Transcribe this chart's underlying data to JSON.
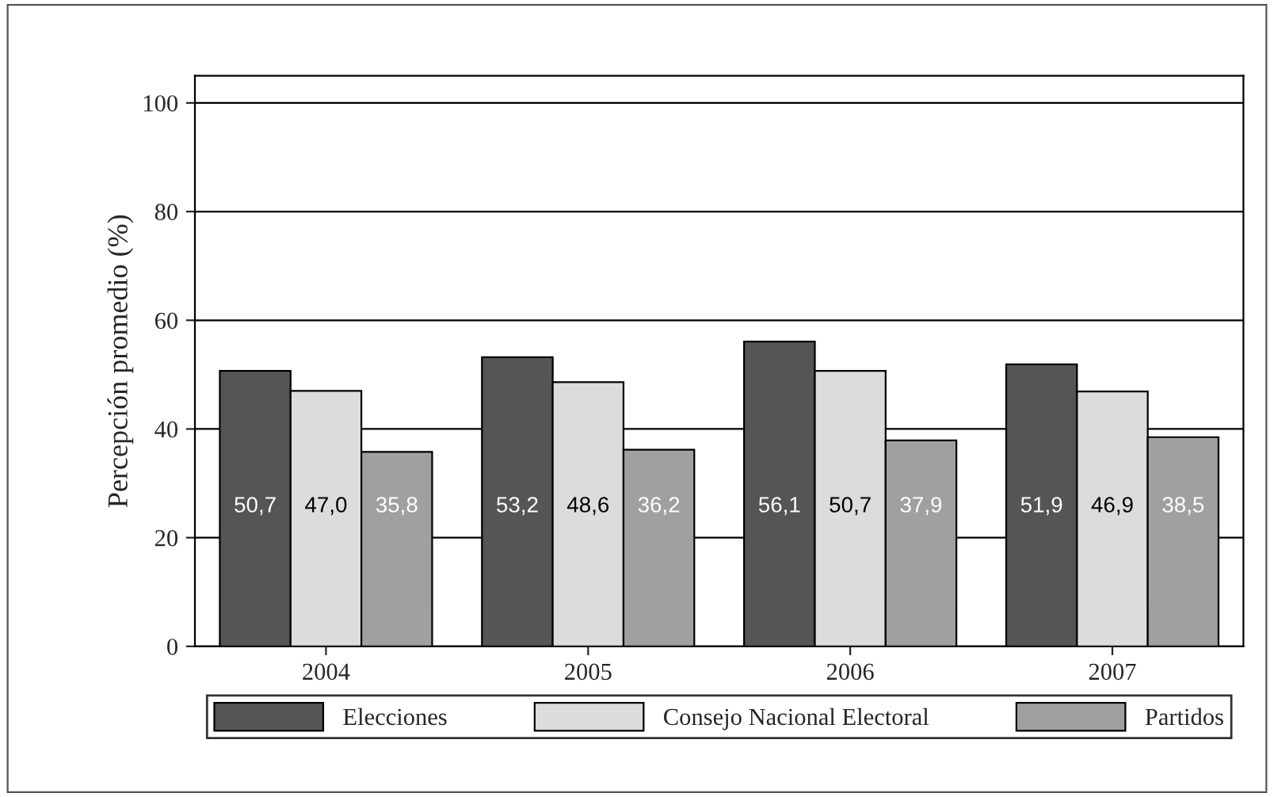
{
  "chart_data": {
    "type": "bar",
    "ylabel": "Percepción promedio (%)",
    "categories": [
      "2004",
      "2005",
      "2006",
      "2007"
    ],
    "series": [
      {
        "name": "Elecciones",
        "color": "#555555",
        "values": [
          50.7,
          53.2,
          56.1,
          51.9
        ],
        "value_labels": [
          "50,7",
          "53,2",
          "56,1",
          "51,9"
        ]
      },
      {
        "name": "Consejo Nacional Electoral",
        "color": "#dcdcdc",
        "values": [
          47.0,
          48.6,
          50.7,
          46.9
        ],
        "value_labels": [
          "47,0",
          "48,6",
          "50,7",
          "46,9"
        ]
      },
      {
        "name": "Partidos",
        "color": "#a0a0a0",
        "values": [
          35.8,
          36.2,
          37.9,
          38.5
        ],
        "value_labels": [
          "35,8",
          "36,2",
          "37,9",
          "38,5"
        ]
      }
    ],
    "ylim": [
      0,
      105
    ],
    "yticks": [
      0,
      20,
      40,
      60,
      80,
      100
    ],
    "grid": "y",
    "legend": "bottom"
  }
}
